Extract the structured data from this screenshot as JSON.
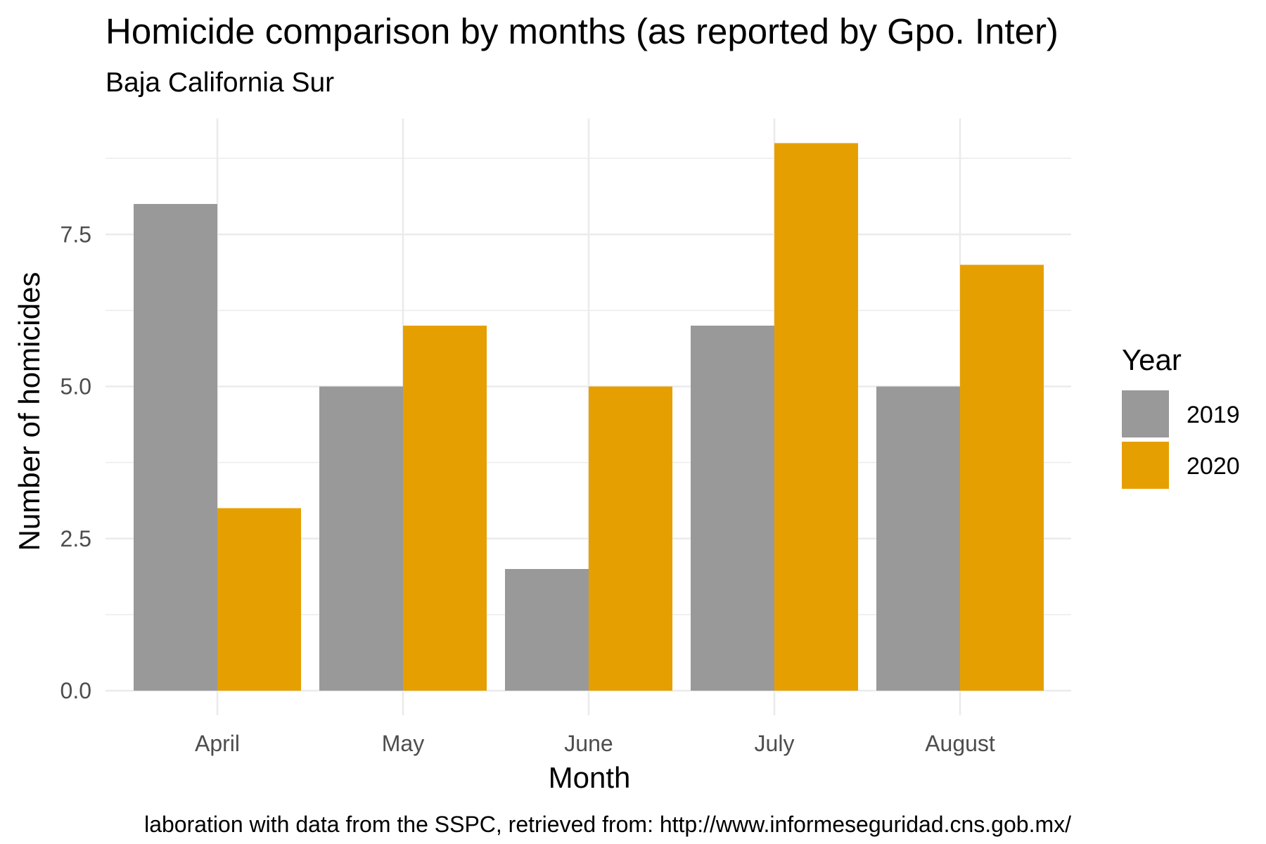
{
  "chart_data": {
    "type": "bar",
    "title": "Homicide comparison by months (as reported by Gpo. Inter)",
    "subtitle": "Baja California Sur",
    "xlabel": "Month",
    "ylabel": "Number of homicides",
    "caption": "laboration with data from the SSPC, retrieved from: http://www.informeseguridad.cns.gob.mx/",
    "categories": [
      "April",
      "May",
      "June",
      "July",
      "August"
    ],
    "series": [
      {
        "name": "2019",
        "color": "#999999",
        "values": [
          8,
          5,
          2,
          6,
          5
        ]
      },
      {
        "name": "2020",
        "color": "#E69F00",
        "values": [
          3,
          6,
          5,
          9,
          7
        ]
      }
    ],
    "ylim": [
      0,
      9
    ],
    "yticks": [
      0.0,
      2.5,
      5.0,
      7.5
    ],
    "ytick_labels": [
      "0.0",
      "2.5",
      "5.0",
      "7.5"
    ],
    "grid": true,
    "legend": {
      "title": "Year",
      "position": "right"
    }
  }
}
